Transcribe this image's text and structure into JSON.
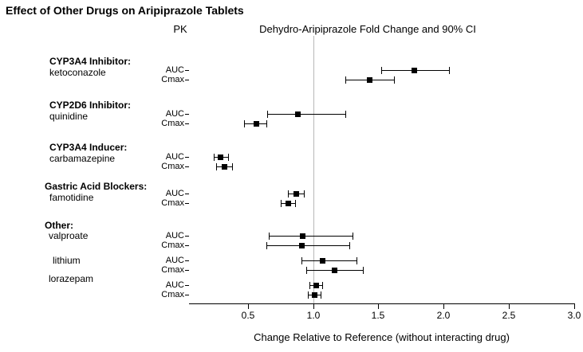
{
  "chart_data": {
    "type": "forest",
    "title": "Effect of Other Drugs on Aripiprazole Tablets",
    "column_header": "PK",
    "plot_header": "Dehydro-Aripiprazole Fold Change and 90% CI",
    "xlabel": "Change Relative to Reference (without interacting drug)",
    "xlim": [
      0.05,
      3.0
    ],
    "xticks": [
      0.5,
      1.0,
      1.5,
      2.0,
      2.5,
      3.0
    ],
    "reference_line": 1.0,
    "marker_color": "#000000",
    "reference_line_color": "#b8b8b8",
    "groups": [
      {
        "label": "CYP3A4 Inhibitor:",
        "drug": "ketoconazole",
        "rows": [
          {
            "pk": "AUC",
            "value": 1.77,
            "lo": 1.52,
            "hi": 2.04
          },
          {
            "pk": "Cmax",
            "value": 1.43,
            "lo": 1.25,
            "hi": 1.62
          }
        ]
      },
      {
        "label": "CYP2D6 Inhibitor:",
        "drug": "quinidine",
        "rows": [
          {
            "pk": "AUC",
            "value": 0.88,
            "lo": 0.65,
            "hi": 1.25
          },
          {
            "pk": "Cmax",
            "value": 0.56,
            "lo": 0.47,
            "hi": 0.64
          }
        ]
      },
      {
        "label": "CYP3A4 Inducer:",
        "drug": "carbamazepine",
        "rows": [
          {
            "pk": "AUC",
            "value": 0.29,
            "lo": 0.24,
            "hi": 0.35
          },
          {
            "pk": "Cmax",
            "value": 0.32,
            "lo": 0.26,
            "hi": 0.38
          }
        ]
      },
      {
        "label": "Gastric Acid Blockers:",
        "drug": "famotidine",
        "rows": [
          {
            "pk": "AUC",
            "value": 0.87,
            "lo": 0.81,
            "hi": 0.93
          },
          {
            "pk": "Cmax",
            "value": 0.81,
            "lo": 0.75,
            "hi": 0.86
          }
        ]
      },
      {
        "label": "Other:",
        "drug": "valproate",
        "rows": [
          {
            "pk": "AUC",
            "value": 0.92,
            "lo": 0.66,
            "hi": 1.3
          },
          {
            "pk": "Cmax",
            "value": 0.91,
            "lo": 0.64,
            "hi": 1.28
          }
        ]
      },
      {
        "label": "",
        "drug": "lithium",
        "rows": [
          {
            "pk": "AUC",
            "value": 1.07,
            "lo": 0.91,
            "hi": 1.33
          },
          {
            "pk": "Cmax",
            "value": 1.16,
            "lo": 0.95,
            "hi": 1.38
          }
        ]
      },
      {
        "label": "",
        "drug": "lorazepam",
        "rows": [
          {
            "pk": "AUC",
            "value": 1.02,
            "lo": 0.97,
            "hi": 1.07
          },
          {
            "pk": "Cmax",
            "value": 1.01,
            "lo": 0.96,
            "hi": 1.06
          }
        ]
      }
    ]
  }
}
